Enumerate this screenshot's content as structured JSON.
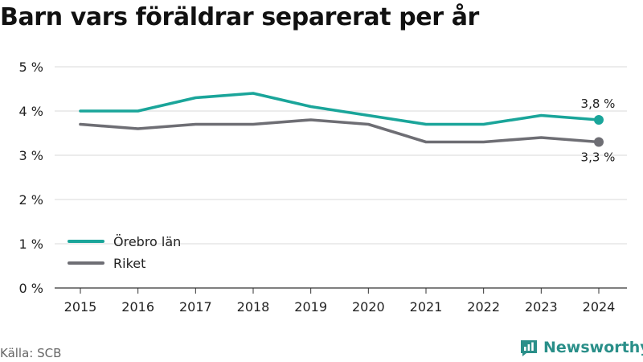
{
  "title": "Barn vars föräldrar separerat per år",
  "source": "Källa: SCB",
  "brand": "Newsworthy",
  "colors": {
    "orebro": "#1aa59a",
    "riket": "#6e6e74",
    "grid": "#d9d9d9",
    "brand": "#2a8f89"
  },
  "chart_data": {
    "type": "line",
    "title": "Barn vars föräldrar separerat per år",
    "x": [
      "2015",
      "2016",
      "2017",
      "2018",
      "2019",
      "2020",
      "2021",
      "2022",
      "2023",
      "2024"
    ],
    "yticks": [
      "0 %",
      "1 %",
      "2 %",
      "3 %",
      "4 %",
      "5 %"
    ],
    "ylim": [
      0,
      5
    ],
    "grid": true,
    "legend_position": "bottom-left",
    "series": [
      {
        "name": "Örebro län",
        "color": "#1aa59a",
        "values": [
          4.0,
          4.0,
          4.3,
          4.4,
          4.1,
          3.9,
          3.7,
          3.7,
          3.9,
          3.8
        ],
        "end_label": "3,8 %"
      },
      {
        "name": "Riket",
        "color": "#6e6e74",
        "values": [
          3.7,
          3.6,
          3.7,
          3.7,
          3.8,
          3.7,
          3.3,
          3.3,
          3.4,
          3.3
        ],
        "end_label": "3,3 %"
      }
    ]
  }
}
